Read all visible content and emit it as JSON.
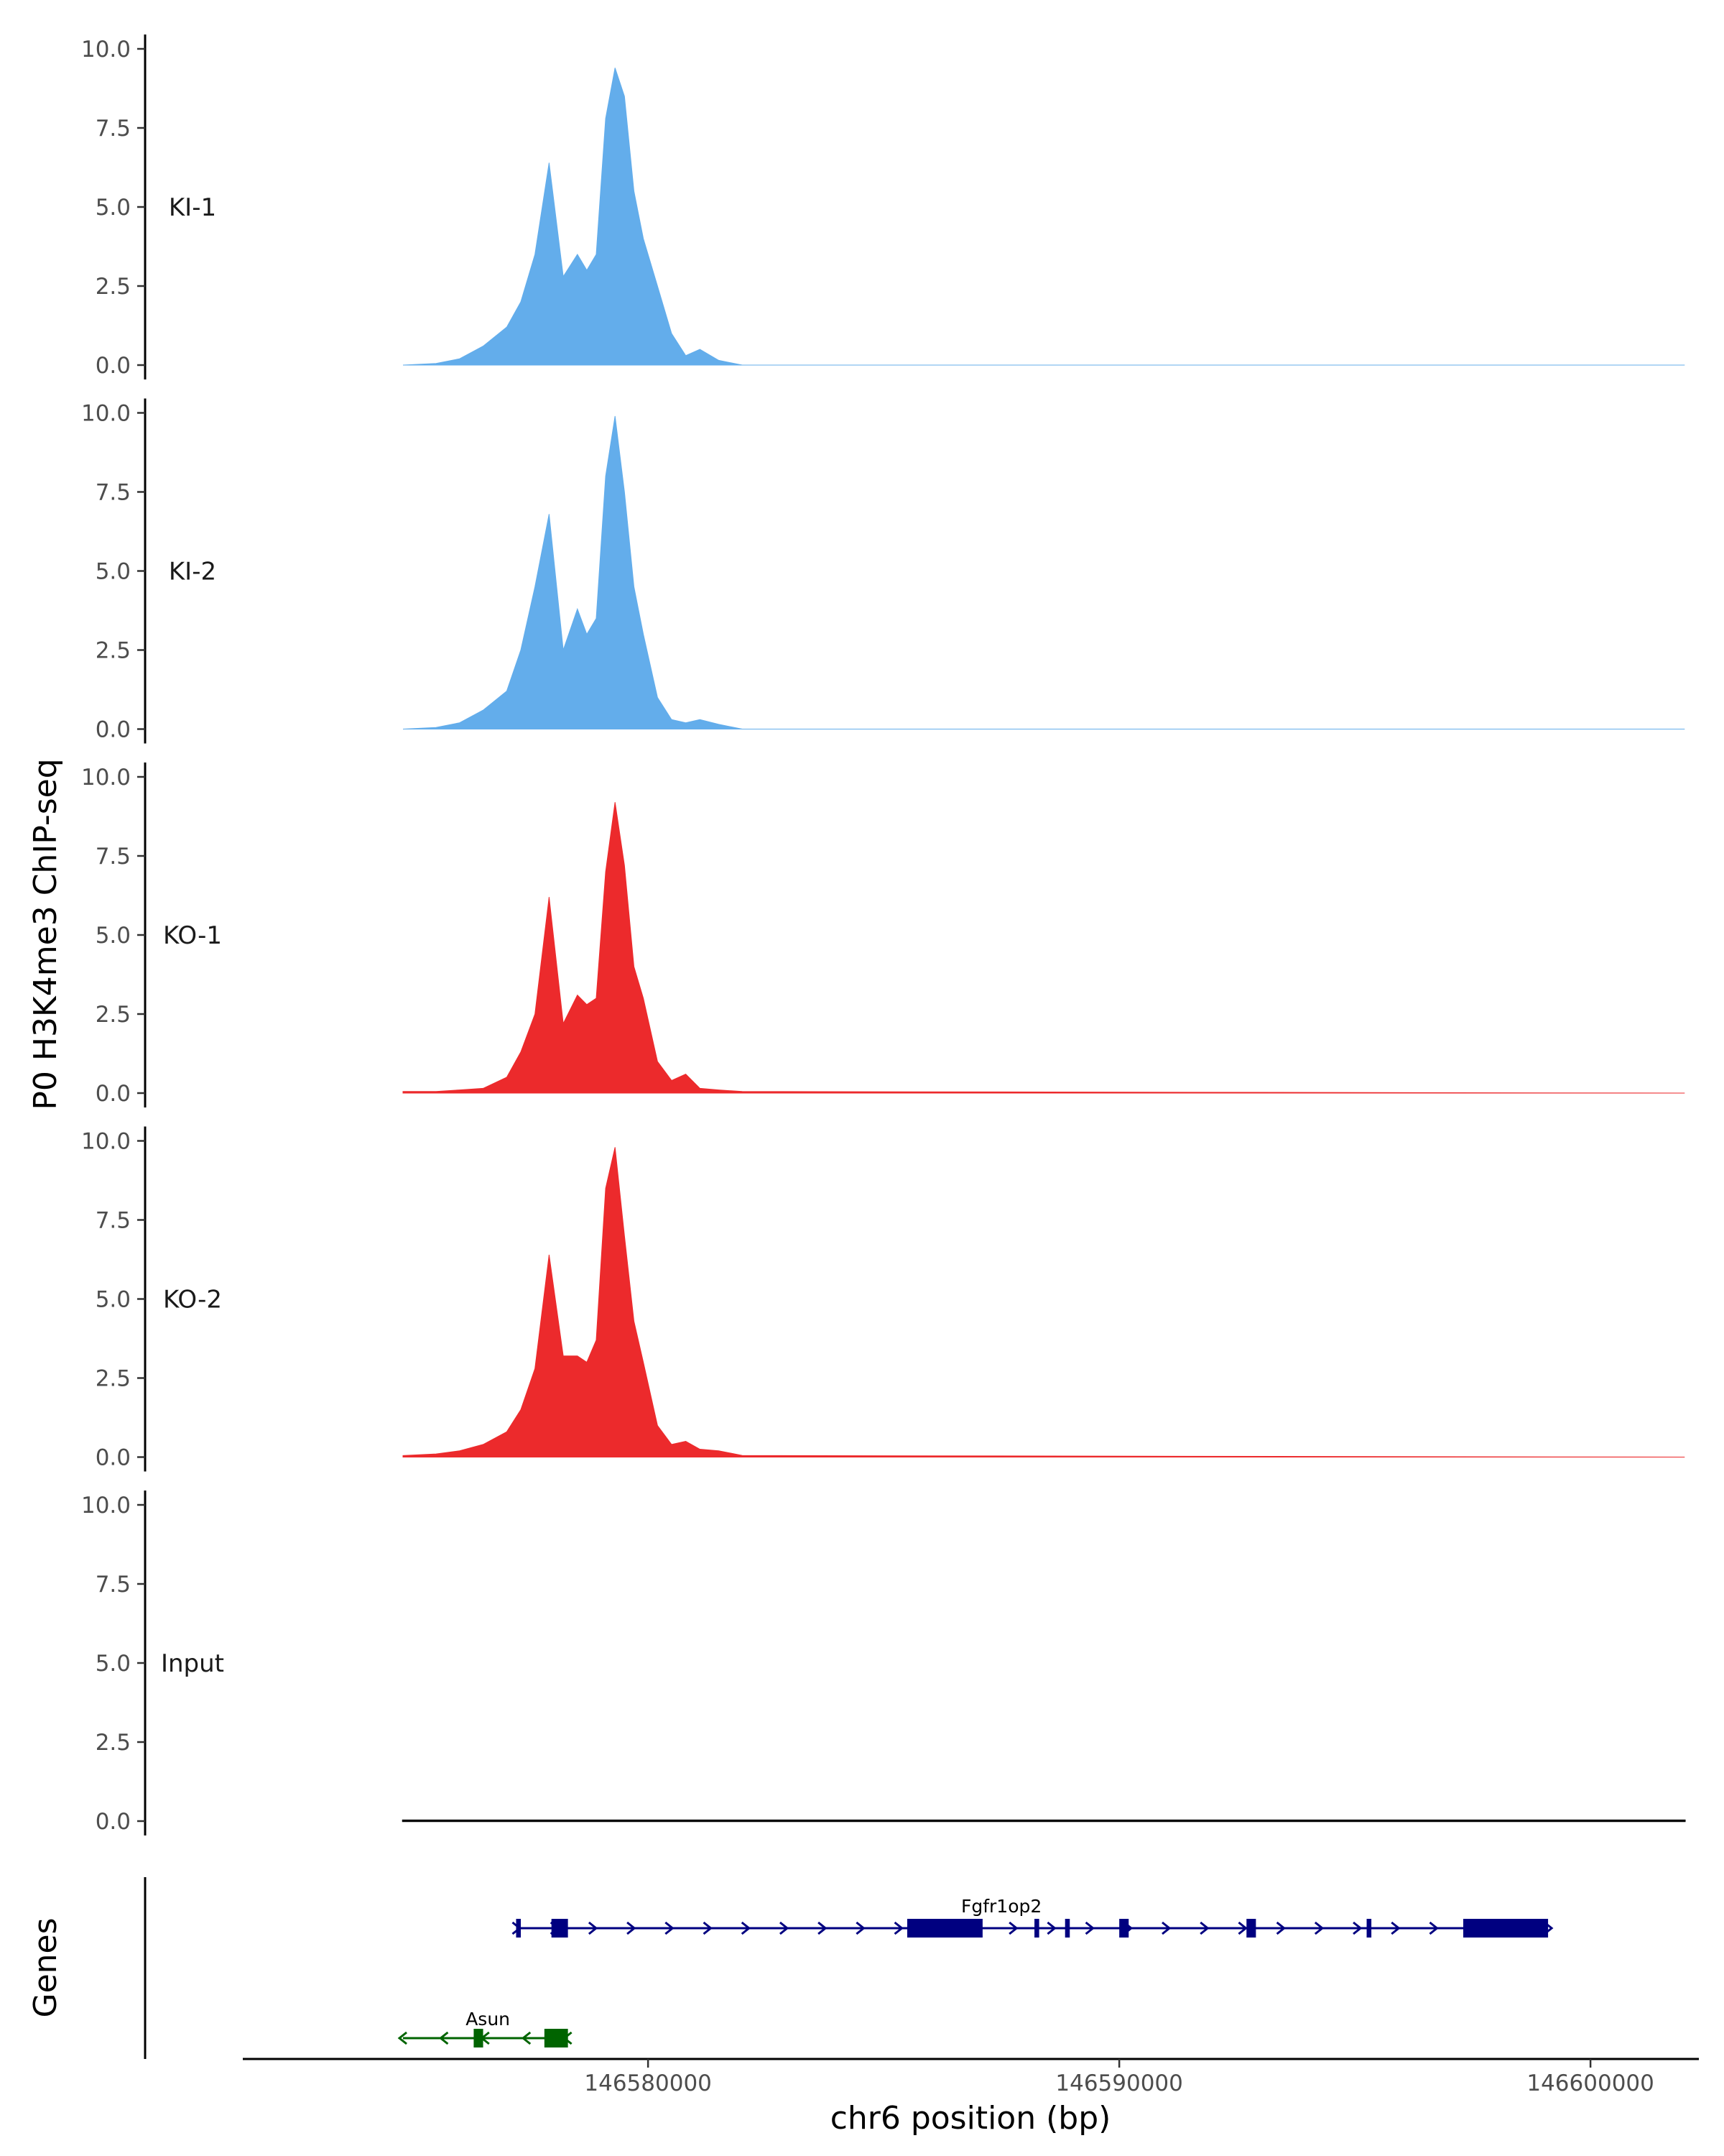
{
  "chart_data": {
    "type": "area",
    "ylabel": "P0 H3K4me3 ChIP-seq",
    "xlabel": "chr6 position (bp)",
    "genes_label": "Genes",
    "ylim": [
      0,
      10
    ],
    "y_ticks": [
      "0.0",
      "2.5",
      "5.0",
      "7.5",
      "10.0"
    ],
    "xlim": [
      146571400,
      146602300
    ],
    "x_ticks": [
      146580000,
      146590000,
      146600000
    ],
    "x_tick_labels": [
      "146580000",
      "146590000",
      "146600000"
    ],
    "colors": {
      "KI": "#63ADEB",
      "KO": "#EC2A2C",
      "Input": "#000000",
      "Fgfr1op2": "#000080",
      "Asun": "#006400"
    },
    "series": [
      {
        "name": "KI-1",
        "color": "#63ADEB",
        "x": [
          146574800,
          146575500,
          146576000,
          146576500,
          146577000,
          146577300,
          146577600,
          146577900,
          146578200,
          146578500,
          146578700,
          146578900,
          146579100,
          146579300,
          146579500,
          146579700,
          146579900,
          146580200,
          146580500,
          146580800,
          146581100,
          146581500,
          146582000,
          146602000
        ],
        "values": [
          0,
          0.05,
          0.2,
          0.6,
          1.2,
          2.0,
          3.5,
          6.4,
          2.8,
          3.5,
          3.0,
          3.5,
          7.8,
          9.4,
          8.5,
          5.5,
          4.0,
          2.5,
          1.0,
          0.3,
          0.5,
          0.15,
          0,
          0
        ]
      },
      {
        "name": "KI-2",
        "color": "#63ADEB",
        "x": [
          146574800,
          146575500,
          146576000,
          146576500,
          146577000,
          146577300,
          146577600,
          146577900,
          146578200,
          146578500,
          146578700,
          146578900,
          146579100,
          146579300,
          146579500,
          146579700,
          146579900,
          146580200,
          146580500,
          146580800,
          146581100,
          146581500,
          146582000,
          146602000
        ],
        "values": [
          0,
          0.05,
          0.2,
          0.6,
          1.2,
          2.5,
          4.5,
          6.8,
          2.5,
          3.8,
          3.0,
          3.5,
          8.0,
          9.9,
          7.5,
          4.5,
          3.0,
          1.0,
          0.3,
          0.2,
          0.3,
          0.15,
          0,
          0
        ]
      },
      {
        "name": "KO-1",
        "color": "#EC2A2C",
        "x": [
          146574800,
          146575500,
          146576000,
          146576500,
          146577000,
          146577300,
          146577600,
          146577900,
          146578200,
          146578500,
          146578700,
          146578900,
          146579100,
          146579300,
          146579500,
          146579700,
          146579900,
          146580200,
          146580500,
          146580800,
          146581100,
          146581500,
          146582000,
          146602000
        ],
        "values": [
          0.05,
          0.05,
          0.1,
          0.15,
          0.5,
          1.3,
          2.5,
          6.2,
          2.2,
          3.1,
          2.8,
          3.0,
          7.0,
          9.2,
          7.2,
          4.0,
          3.0,
          1.0,
          0.4,
          0.6,
          0.15,
          0.1,
          0.05,
          0
        ]
      },
      {
        "name": "KO-2",
        "color": "#EC2A2C",
        "x": [
          146574800,
          146575500,
          146576000,
          146576500,
          146577000,
          146577300,
          146577600,
          146577900,
          146578200,
          146578500,
          146578700,
          146578900,
          146579100,
          146579300,
          146579500,
          146579700,
          146579900,
          146580200,
          146580500,
          146580800,
          146581100,
          146581500,
          146582000,
          146602000
        ],
        "values": [
          0.05,
          0.1,
          0.2,
          0.4,
          0.8,
          1.5,
          2.8,
          6.4,
          3.2,
          3.2,
          3.0,
          3.7,
          8.5,
          9.8,
          7.0,
          4.3,
          3.0,
          1.0,
          0.4,
          0.5,
          0.25,
          0.2,
          0.05,
          0
        ]
      },
      {
        "name": "Input",
        "color": "#000000",
        "x": [
          146574800,
          146602000
        ],
        "values": [
          0.02,
          0.02
        ]
      }
    ],
    "genes": [
      {
        "name": "Fgfr1op2",
        "strand": "+",
        "color": "#000080",
        "start": 146577200,
        "end": 146599100,
        "exons": [
          [
            146577200,
            146577300
          ],
          [
            146577950,
            146578300
          ],
          [
            146585500,
            146587100
          ],
          [
            146588200,
            146588300
          ],
          [
            146588850,
            146588950
          ],
          [
            146590000,
            146590200
          ],
          [
            146592700,
            146592900
          ],
          [
            146595250,
            146595350
          ],
          [
            146597300,
            146599100
          ]
        ]
      },
      {
        "name": "Asun",
        "strand": "-",
        "color": "#006400",
        "start": 146574800,
        "end": 146578300,
        "exons": [
          [
            146576300,
            146576500
          ],
          [
            146577800,
            146578300
          ]
        ]
      }
    ]
  }
}
